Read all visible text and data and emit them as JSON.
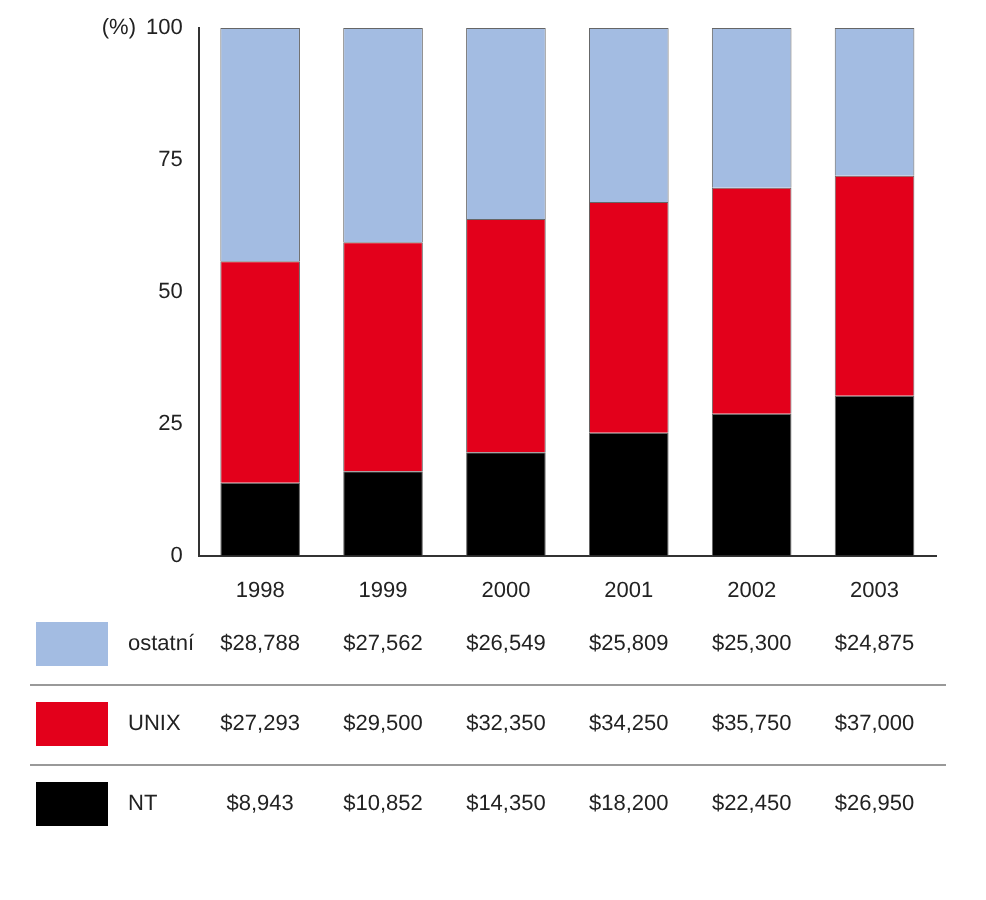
{
  "chart_data": {
    "type": "bar",
    "stacked": true,
    "ylabel": "(%)",
    "categories": [
      "1998",
      "1999",
      "2000",
      "2001",
      "2002",
      "2003"
    ],
    "ylim": [
      0,
      100
    ],
    "yticks": [
      0,
      25,
      50,
      75,
      100
    ],
    "legend": "bottom",
    "series": [
      {
        "name": "NT",
        "color": "#000000",
        "values": [
          13.8,
          16.0,
          19.6,
          23.3,
          26.9,
          30.3
        ]
      },
      {
        "name": "UNIX",
        "color": "#e3001b",
        "values": [
          42.0,
          43.4,
          44.2,
          43.7,
          42.8,
          41.7
        ]
      },
      {
        "name": "ostatní",
        "color": "#a3bce2",
        "values": [
          44.2,
          40.6,
          36.2,
          33.0,
          30.3,
          28.0
        ]
      }
    ],
    "annotations": [
      "$28,788",
      "$27,562",
      "$26,549",
      "$25,809",
      "$25,300",
      "$24,875",
      "$27,293",
      "$29,500",
      "$32,350",
      "$34,250",
      "$35,750",
      "$37,000",
      "$8,943",
      "$10,852",
      "$14,350",
      "$18,200",
      "$22,450",
      "$26,950"
    ]
  }
}
